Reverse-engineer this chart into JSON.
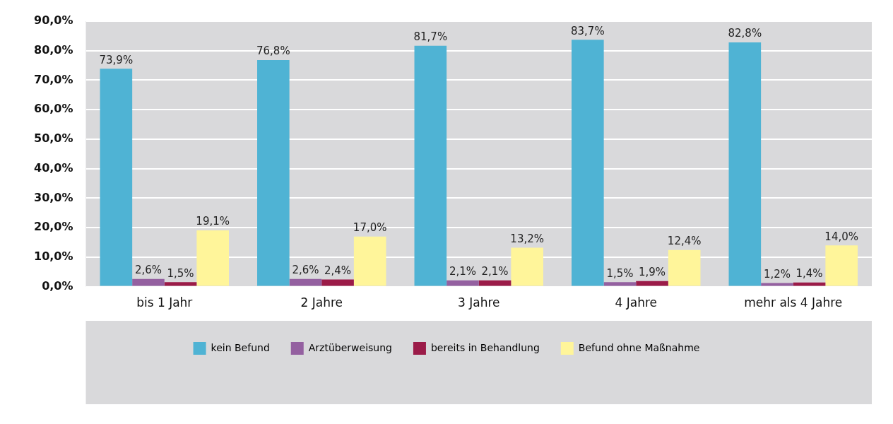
{
  "chart_data": {
    "type": "bar",
    "categories": [
      "bis 1 Jahr",
      "2 Jahre",
      "3 Jahre",
      "4 Jahre",
      "mehr als 4 Jahre"
    ],
    "series": [
      {
        "name": "kein Befund",
        "color": "#4fb3d4",
        "values": [
          73.9,
          76.8,
          81.7,
          83.7,
          82.8
        ],
        "value_labels": [
          "73,9%",
          "76,8%",
          "81,7%",
          "83,7%",
          "82,8%"
        ]
      },
      {
        "name": "Arztüberweisung",
        "color": "#9460a0",
        "values": [
          2.6,
          2.6,
          2.1,
          1.5,
          1.2
        ],
        "value_labels": [
          "2,6%",
          "2,6%",
          "2,1%",
          "1,5%",
          "1,2%"
        ]
      },
      {
        "name": "bereits in Behandlung",
        "color": "#9b1b48",
        "values": [
          1.5,
          2.4,
          2.1,
          1.9,
          1.4
        ],
        "value_labels": [
          "1,5%",
          "2,4%",
          "2,1%",
          "1,9%",
          "1,4%"
        ]
      },
      {
        "name": "Befund ohne Maßnahme",
        "color": "#fff59a",
        "values": [
          19.1,
          17.0,
          13.2,
          12.4,
          14.0
        ],
        "value_labels": [
          "19,1%",
          "17,0%",
          "13,2%",
          "12,4%",
          "14,0%"
        ]
      }
    ],
    "ylim": [
      0,
      90
    ],
    "yticks": [
      {
        "value": 0,
        "label": "0,0%"
      },
      {
        "value": 10,
        "label": "10,0%"
      },
      {
        "value": 20,
        "label": "20,0%"
      },
      {
        "value": 30,
        "label": "30,0%"
      },
      {
        "value": 40,
        "label": "40,0%"
      },
      {
        "value": 50,
        "label": "50,0%"
      },
      {
        "value": 60,
        "label": "60,0%"
      },
      {
        "value": 70,
        "label": "70,0%"
      },
      {
        "value": 80,
        "label": "80,0%"
      },
      {
        "value": 90,
        "label": "90,0%"
      }
    ],
    "grid": "y",
    "legend": "bottom"
  }
}
